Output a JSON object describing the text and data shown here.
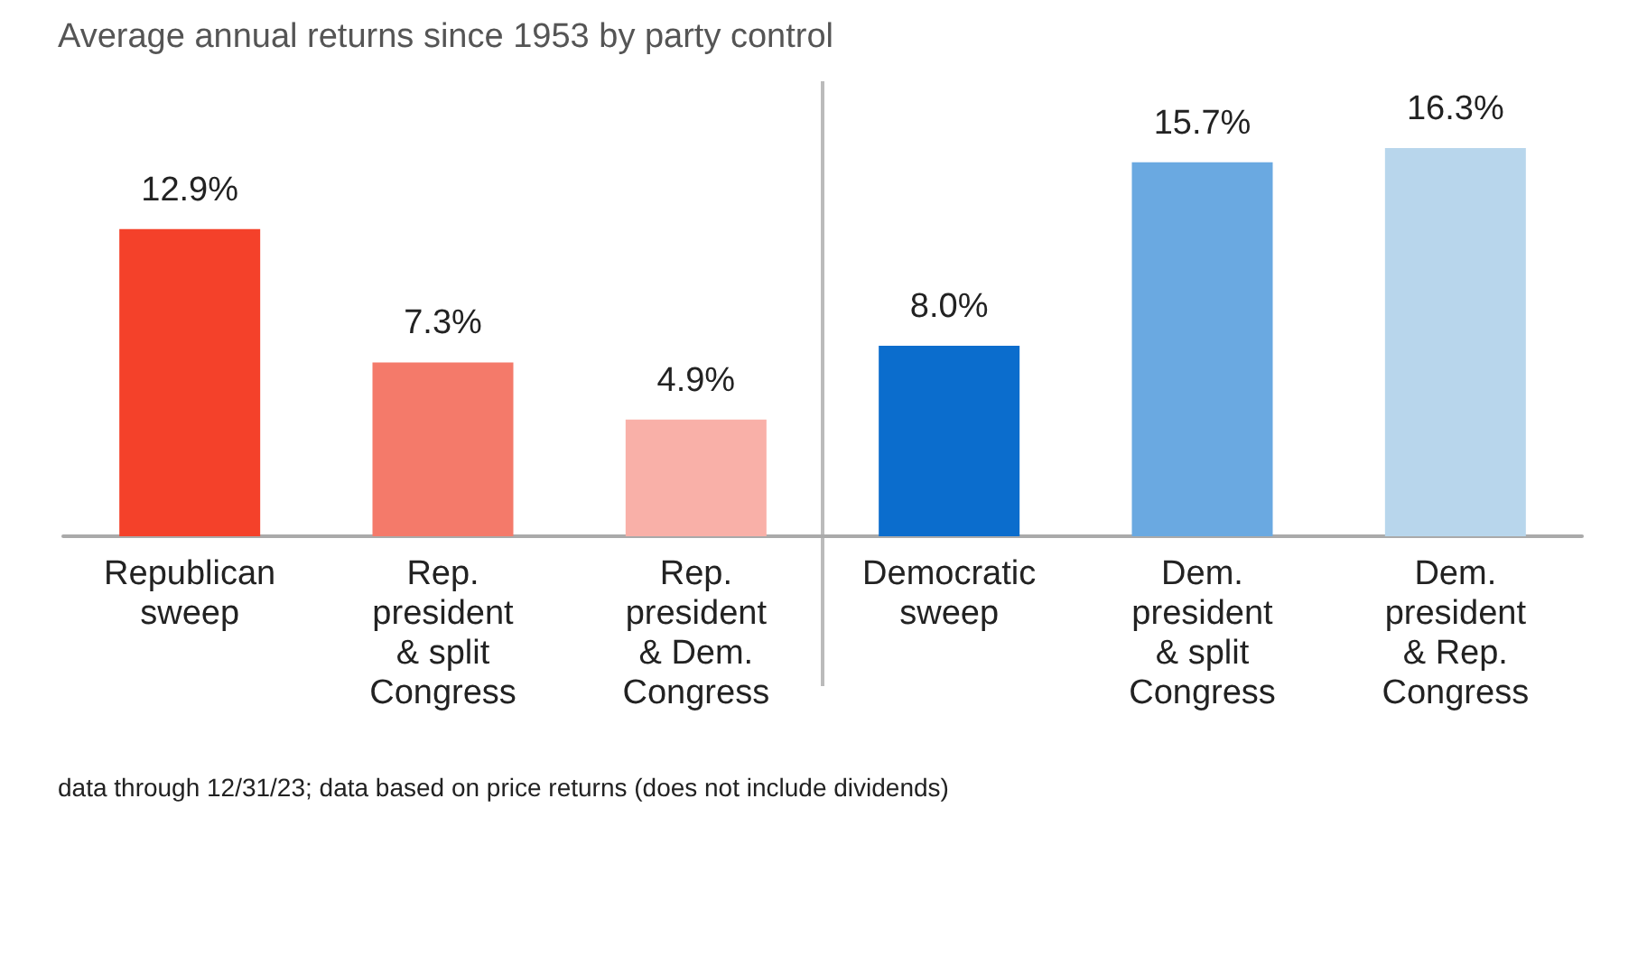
{
  "chart_data": {
    "type": "bar",
    "title": "Average annual returns since 1953 by party control",
    "categories": [
      "Republican\nsweep",
      "Rep.\npresident\n& split\nCongress",
      "Rep.\npresident\n& Dem.\nCongress",
      "Democratic\nsweep",
      "Dem.\npresident\n& split\nCongress",
      "Dem.\npresident\n& Rep.\nCongress"
    ],
    "values": [
      12.9,
      7.3,
      4.9,
      8.0,
      15.7,
      16.3
    ],
    "value_labels": [
      "12.9%",
      "7.3%",
      "4.9%",
      "8.0%",
      "15.7%",
      "16.3%"
    ],
    "colors": [
      "#f4412a",
      "#f47a6a",
      "#f9b0a8",
      "#0b6dcd",
      "#6aa9e1",
      "#b8d6ec"
    ],
    "annotations": [
      "data through 12/31/23; data based on price returns (does not include dividends)"
    ]
  }
}
